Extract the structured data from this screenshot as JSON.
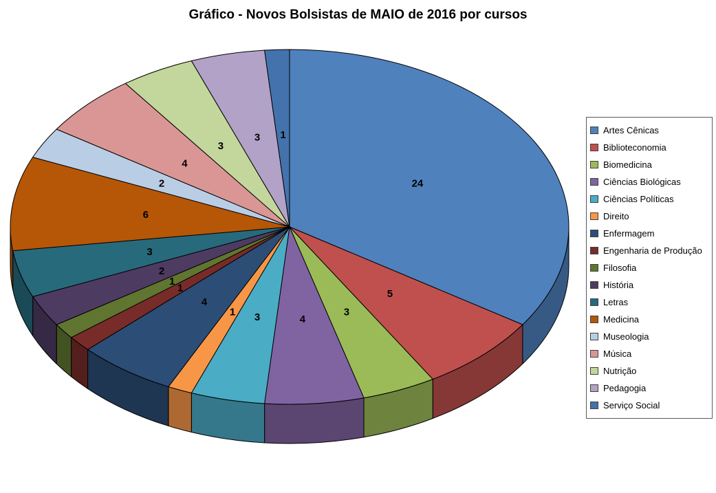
{
  "title": "Gráfico - Novos Bolsistas de MAIO de 2016 por cursos",
  "chart_data": {
    "type": "pie",
    "style": "3d",
    "title": "Gráfico - Novos Bolsistas de MAIO de 2016 por cursos",
    "categories": [
      "Artes Cênicas",
      "Biblioteconomia",
      "Biomedicina",
      "Ciências Biológicas",
      "Ciências Políticas",
      "Direito",
      "Enfermagem",
      "Engenharia de Produção",
      "Filosofia",
      "História",
      "Letras",
      "Medicina",
      "Museologia",
      "Música",
      "Nutrição",
      "Pedagogia",
      "Serviço Social"
    ],
    "values": [
      24,
      5,
      3,
      4,
      3,
      1,
      4,
      1,
      1,
      2,
      3,
      6,
      2,
      4,
      3,
      3,
      1
    ],
    "colors": [
      "#4F81BD",
      "#C0504D",
      "#9BBB59",
      "#8064A2",
      "#4BACC6",
      "#F79646",
      "#2C4D75",
      "#772C2A",
      "#5F7530",
      "#4D3B62",
      "#276A7C",
      "#B65708",
      "#B9CDE5",
      "#D99694",
      "#C3D69B",
      "#B3A2C7",
      "#4372AD"
    ],
    "data_labels": "value",
    "start_angle_deg": -90,
    "direction": "clockwise",
    "legend_position": "right",
    "grid": false
  }
}
